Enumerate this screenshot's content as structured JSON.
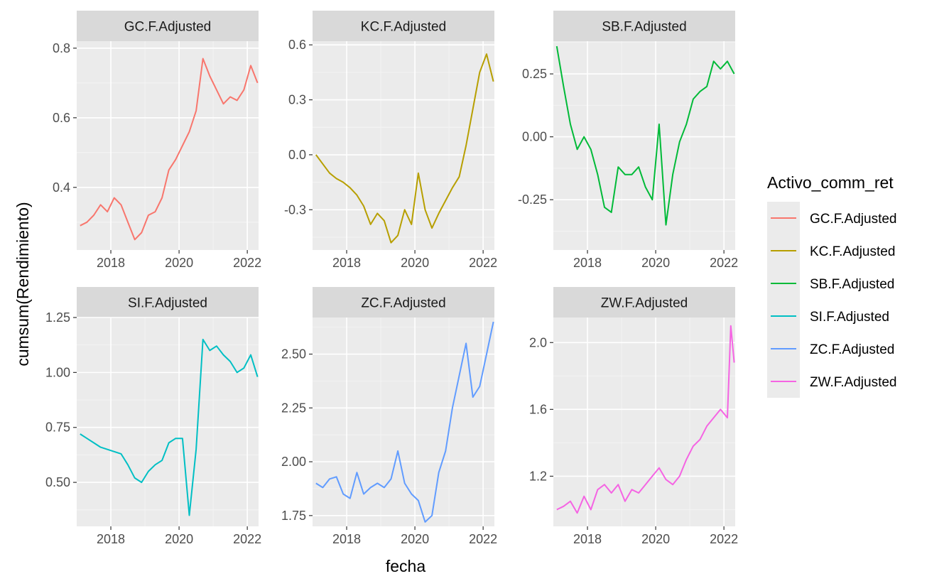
{
  "chart_data": {
    "type": "line",
    "xlabel": "fecha",
    "ylabel": "cumsum(Rendimiento)",
    "legend": {
      "title": "Activo_comm_ret",
      "placement": "right",
      "entries": [
        "GC.F.Adjusted",
        "KC.F.Adjusted",
        "SB.F.Adjusted",
        "SI.F.Adjusted",
        "ZC.F.Adjusted",
        "ZW.F.Adjusted"
      ]
    },
    "xlim": [
      2017.0,
      2022.33
    ],
    "x_ticks": [
      2018,
      2020,
      2022
    ],
    "x_tick_labels": [
      "2018",
      "2020",
      "2022"
    ],
    "grid": true,
    "facets": [
      {
        "name": "GC.F.Adjusted",
        "color": "#F8766D",
        "ylim": [
          0.22,
          0.82
        ],
        "y_ticks": [
          0.4,
          0.6,
          0.8
        ],
        "y_tick_labels": [
          "0.4",
          "0.6",
          "0.8"
        ],
        "x": [
          2017.1,
          2017.3,
          2017.5,
          2017.7,
          2017.9,
          2018.1,
          2018.3,
          2018.5,
          2018.7,
          2018.9,
          2019.1,
          2019.3,
          2019.5,
          2019.7,
          2019.9,
          2020.1,
          2020.3,
          2020.5,
          2020.7,
          2020.9,
          2021.1,
          2021.3,
          2021.5,
          2021.7,
          2021.9,
          2022.1,
          2022.3
        ],
        "y": [
          0.29,
          0.3,
          0.32,
          0.35,
          0.33,
          0.37,
          0.35,
          0.3,
          0.25,
          0.27,
          0.32,
          0.33,
          0.37,
          0.45,
          0.48,
          0.52,
          0.56,
          0.62,
          0.77,
          0.72,
          0.68,
          0.64,
          0.66,
          0.65,
          0.68,
          0.75,
          0.7
        ]
      },
      {
        "name": "KC.F.Adjusted",
        "color": "#B79F00",
        "ylim": [
          -0.52,
          0.62
        ],
        "y_ticks": [
          -0.3,
          0.0,
          0.3,
          0.6
        ],
        "y_tick_labels": [
          "-0.3",
          "0.0",
          "0.3",
          "0.6"
        ],
        "x": [
          2017.1,
          2017.3,
          2017.5,
          2017.7,
          2017.9,
          2018.1,
          2018.3,
          2018.5,
          2018.7,
          2018.9,
          2019.1,
          2019.3,
          2019.5,
          2019.7,
          2019.9,
          2020.1,
          2020.3,
          2020.5,
          2020.7,
          2020.9,
          2021.1,
          2021.3,
          2021.5,
          2021.7,
          2021.9,
          2022.1,
          2022.3
        ],
        "y": [
          0.0,
          -0.05,
          -0.1,
          -0.13,
          -0.15,
          -0.18,
          -0.22,
          -0.28,
          -0.38,
          -0.32,
          -0.36,
          -0.48,
          -0.44,
          -0.3,
          -0.38,
          -0.1,
          -0.3,
          -0.4,
          -0.32,
          -0.25,
          -0.18,
          -0.12,
          0.05,
          0.25,
          0.45,
          0.55,
          0.4
        ]
      },
      {
        "name": "SB.F.Adjusted",
        "color": "#00BA38",
        "ylim": [
          -0.45,
          0.38
        ],
        "y_ticks": [
          -0.25,
          0.0,
          0.25
        ],
        "y_tick_labels": [
          "-0.25",
          "0.00",
          "0.25"
        ],
        "x": [
          2017.1,
          2017.3,
          2017.5,
          2017.7,
          2017.9,
          2018.1,
          2018.3,
          2018.5,
          2018.7,
          2018.9,
          2019.1,
          2019.3,
          2019.5,
          2019.7,
          2019.9,
          2020.1,
          2020.3,
          2020.5,
          2020.7,
          2020.9,
          2021.1,
          2021.3,
          2021.5,
          2021.7,
          2021.9,
          2022.1,
          2022.3
        ],
        "y": [
          0.36,
          0.2,
          0.05,
          -0.05,
          0.0,
          -0.05,
          -0.15,
          -0.28,
          -0.3,
          -0.12,
          -0.15,
          -0.15,
          -0.12,
          -0.2,
          -0.25,
          0.05,
          -0.35,
          -0.15,
          -0.02,
          0.05,
          0.15,
          0.18,
          0.2,
          0.3,
          0.27,
          0.3,
          0.25
        ]
      },
      {
        "name": "SI.F.Adjusted",
        "color": "#00BFC4",
        "ylim": [
          0.3,
          1.25
        ],
        "y_ticks": [
          0.5,
          0.75,
          1.0,
          1.25
        ],
        "y_tick_labels": [
          "0.50",
          "0.75",
          "1.00",
          "1.25"
        ],
        "x": [
          2017.1,
          2017.3,
          2017.5,
          2017.7,
          2017.9,
          2018.1,
          2018.3,
          2018.5,
          2018.7,
          2018.9,
          2019.1,
          2019.3,
          2019.5,
          2019.7,
          2019.9,
          2020.1,
          2020.3,
          2020.5,
          2020.7,
          2020.9,
          2021.1,
          2021.3,
          2021.5,
          2021.7,
          2021.9,
          2022.1,
          2022.3
        ],
        "y": [
          0.72,
          0.7,
          0.68,
          0.66,
          0.65,
          0.64,
          0.63,
          0.58,
          0.52,
          0.5,
          0.55,
          0.58,
          0.6,
          0.68,
          0.7,
          0.7,
          0.35,
          0.65,
          1.15,
          1.1,
          1.12,
          1.08,
          1.05,
          1.0,
          1.02,
          1.08,
          0.98
        ]
      },
      {
        "name": "ZC.F.Adjusted",
        "color": "#619CFF",
        "ylim": [
          1.7,
          2.67
        ],
        "y_ticks": [
          1.75,
          2.0,
          2.25,
          2.5
        ],
        "y_tick_labels": [
          "1.75",
          "2.00",
          "2.25",
          "2.50"
        ],
        "x": [
          2017.1,
          2017.3,
          2017.5,
          2017.7,
          2017.9,
          2018.1,
          2018.3,
          2018.5,
          2018.7,
          2018.9,
          2019.1,
          2019.3,
          2019.5,
          2019.7,
          2019.9,
          2020.1,
          2020.3,
          2020.5,
          2020.7,
          2020.9,
          2021.1,
          2021.3,
          2021.5,
          2021.7,
          2021.9,
          2022.1,
          2022.3
        ],
        "y": [
          1.9,
          1.88,
          1.92,
          1.93,
          1.85,
          1.83,
          1.95,
          1.85,
          1.88,
          1.9,
          1.88,
          1.92,
          2.05,
          1.9,
          1.85,
          1.82,
          1.72,
          1.75,
          1.95,
          2.05,
          2.25,
          2.4,
          2.55,
          2.3,
          2.35,
          2.5,
          2.65
        ]
      },
      {
        "name": "ZW.F.Adjusted",
        "color": "#F564E3",
        "ylim": [
          0.9,
          2.15
        ],
        "y_ticks": [
          1.2,
          1.6,
          2.0
        ],
        "y_tick_labels": [
          "1.2",
          "1.6",
          "2.0"
        ],
        "x": [
          2017.1,
          2017.3,
          2017.5,
          2017.7,
          2017.9,
          2018.1,
          2018.3,
          2018.5,
          2018.7,
          2018.9,
          2019.1,
          2019.3,
          2019.5,
          2019.7,
          2019.9,
          2020.1,
          2020.3,
          2020.5,
          2020.7,
          2020.9,
          2021.1,
          2021.3,
          2021.5,
          2021.7,
          2021.9,
          2022.1,
          2022.2,
          2022.3
        ],
        "y": [
          1.0,
          1.02,
          1.05,
          0.98,
          1.08,
          1.0,
          1.12,
          1.15,
          1.1,
          1.15,
          1.05,
          1.12,
          1.1,
          1.15,
          1.2,
          1.25,
          1.18,
          1.15,
          1.2,
          1.3,
          1.38,
          1.42,
          1.5,
          1.55,
          1.6,
          1.55,
          2.1,
          1.88
        ]
      }
    ]
  }
}
